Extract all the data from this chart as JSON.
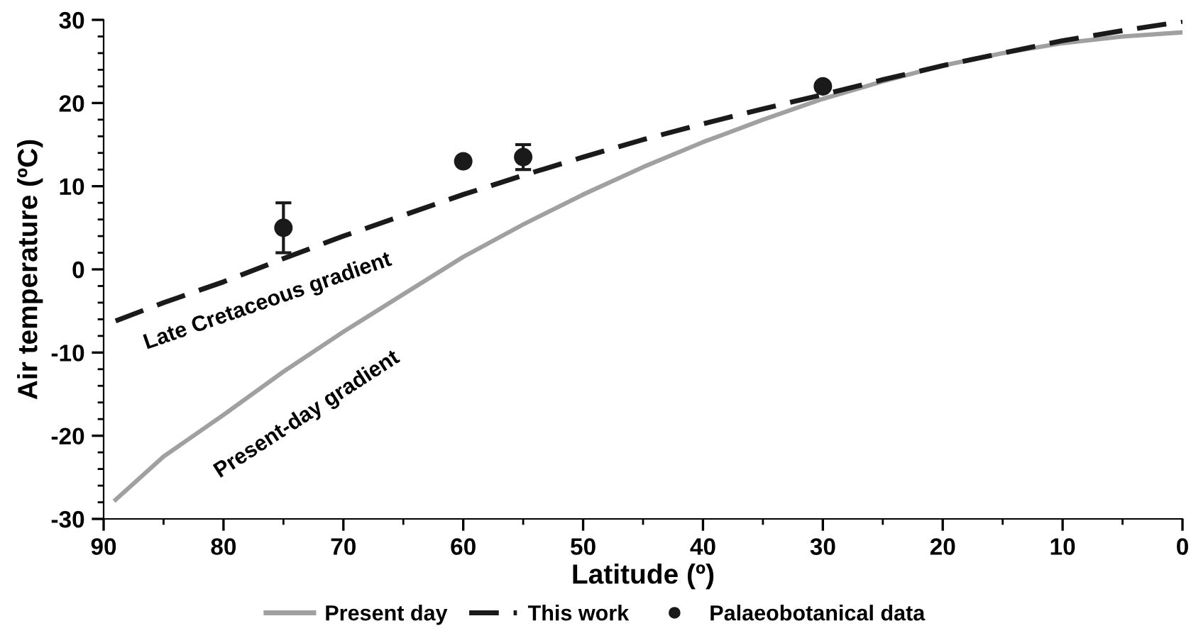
{
  "chart_data": {
    "type": "line",
    "xlabel": "Latitude (º)",
    "ylabel": "Air temperature (ºC)",
    "xlim": [
      90,
      0
    ],
    "xticks": [
      90,
      80,
      70,
      60,
      50,
      40,
      30,
      20,
      10,
      0
    ],
    "ylim": [
      -30,
      30
    ],
    "yticks": [
      -30,
      -20,
      -10,
      0,
      10,
      20,
      30
    ],
    "grid": false,
    "legend": "bottom",
    "series": [
      {
        "name": "Present day",
        "color": "#a0a0a0",
        "line_style": "solid",
        "x": [
          89,
          85,
          80,
          75,
          70,
          65,
          60,
          55,
          50,
          45,
          40,
          35,
          30,
          25,
          20,
          15,
          10,
          5,
          0
        ],
        "values": [
          -27.7,
          -22.5,
          -17.5,
          -12.3,
          -7.5,
          -3,
          1.5,
          5.4,
          9,
          12.3,
          15.3,
          18,
          20.5,
          22.6,
          24.5,
          26,
          27.2,
          28,
          28.5
        ]
      },
      {
        "name": "This work",
        "color": "#1a1a1a",
        "line_style": "dashed",
        "x": [
          89,
          85,
          80,
          75,
          70,
          65,
          60,
          55,
          50,
          45,
          40,
          35,
          30,
          25,
          20,
          15,
          10,
          5,
          0
        ],
        "values": [
          -6.2,
          -4,
          -1.5,
          1.3,
          4,
          6.5,
          9,
          11.3,
          13.5,
          15.6,
          17.5,
          19.3,
          21,
          22.8,
          24.5,
          26,
          27.5,
          28.7,
          29.8
        ]
      },
      {
        "name": "Palaeobotanical data",
        "type": "scatter",
        "color": "#1a1a1a",
        "marker": "circle",
        "x": [
          75,
          60,
          55,
          30
        ],
        "values": [
          5,
          13,
          13.5,
          22
        ],
        "errors": [
          [
            2,
            8
          ],
          null,
          [
            12,
            15
          ],
          null
        ]
      }
    ],
    "annotations": [
      {
        "text": "Late Cretaceous gradient",
        "x": 75,
        "y": 1.3
      },
      {
        "text": "Present-day gradient",
        "x": 75,
        "y": -12.3
      }
    ]
  }
}
